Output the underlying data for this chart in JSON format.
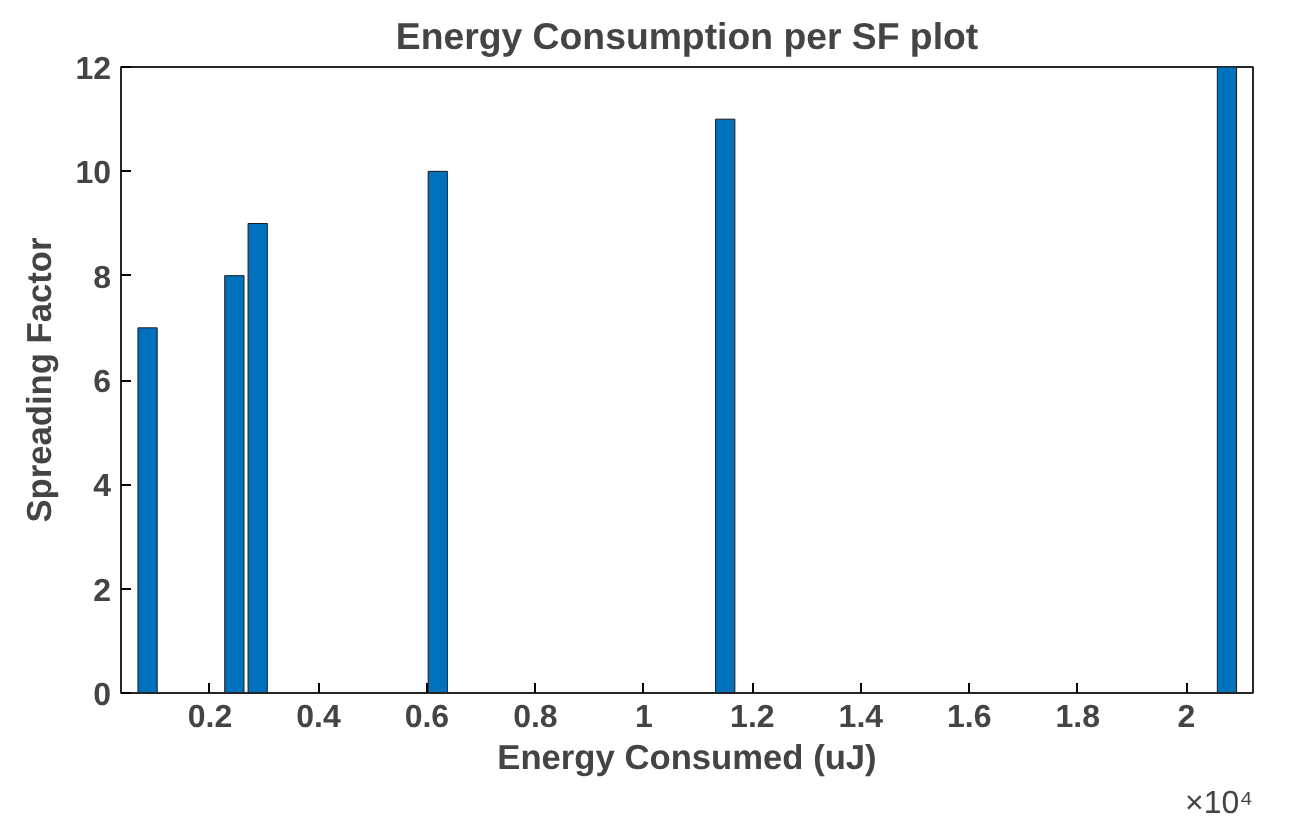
{
  "chart_data": {
    "type": "bar",
    "title": "Energy Consumption per SF plot",
    "xlabel": "Energy Consumed (uJ)",
    "ylabel": "Spreading Factor",
    "x": [
      0.085,
      0.245,
      0.288,
      0.62,
      1.15,
      2.075
    ],
    "values": [
      7,
      8,
      9,
      10,
      11,
      12
    ],
    "color": "#0072bd",
    "xlim": [
      0.036,
      2.123
    ],
    "xticks": [
      0.2,
      0.4,
      0.6,
      0.8,
      1,
      1.2,
      1.4,
      1.6,
      1.8,
      2
    ],
    "ylim": [
      0,
      12
    ],
    "yticks": [
      0,
      2,
      4,
      6,
      8,
      10,
      12
    ],
    "annotations": [
      "×10⁴"
    ],
    "grid": false
  }
}
